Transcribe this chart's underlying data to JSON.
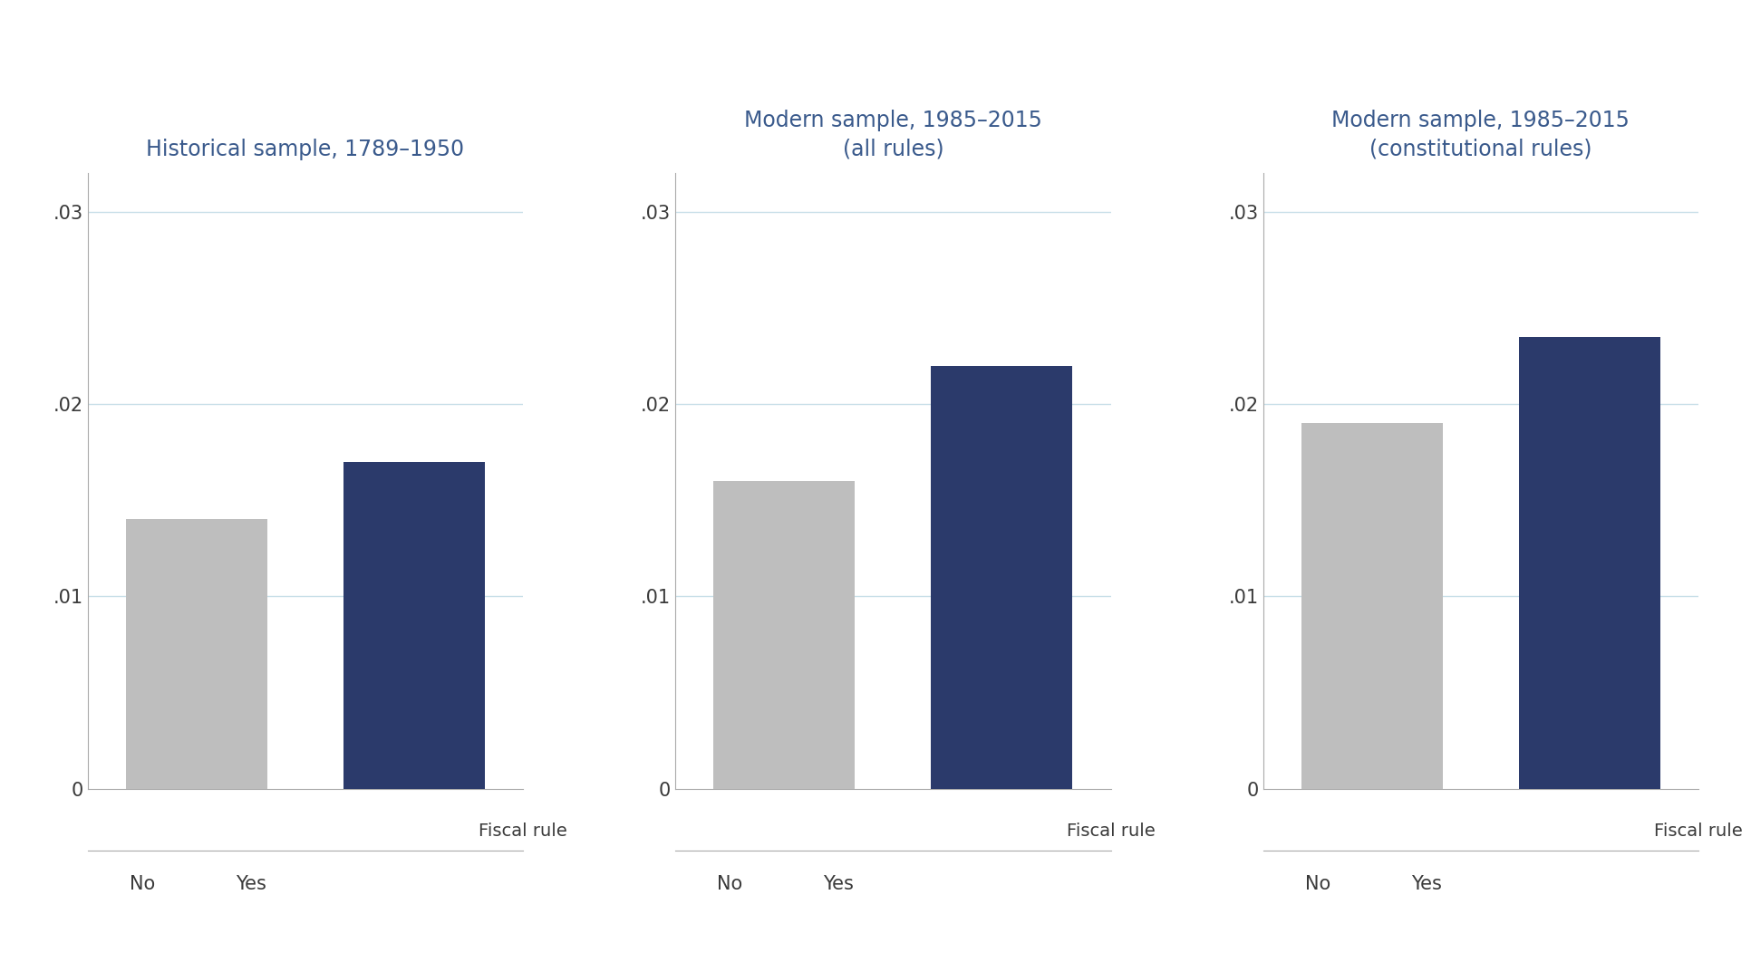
{
  "panels": [
    {
      "title": "Historical sample, 1789–1950",
      "values": [
        0.014,
        0.017
      ],
      "xlabel": "Fiscal rule",
      "xtick_labels": [
        "No",
        "Yes"
      ]
    },
    {
      "title": "Modern sample, 1985–2015\n(all rules)",
      "values": [
        0.016,
        0.022
      ],
      "xlabel": "Fiscal rule",
      "xtick_labels": [
        "No",
        "Yes"
      ]
    },
    {
      "title": "Modern sample, 1985–2015\n(constitutional rules)",
      "values": [
        0.019,
        0.0235
      ],
      "xlabel": "Fiscal rule",
      "xtick_labels": [
        "No",
        "Yes"
      ]
    }
  ],
  "bar_colors": [
    "#bebebe",
    "#2b3a6b"
  ],
  "ylim": [
    0,
    0.032
  ],
  "yticks": [
    0,
    0.01,
    0.02,
    0.03
  ],
  "ytick_labels": [
    "0",
    ".01",
    ".02",
    ".03"
  ],
  "title_color": "#3a5a8c",
  "label_color": "#3a3a3a",
  "background_color": "#ffffff",
  "grid_color": "#c8dfe8",
  "bar_width": 0.65,
  "title_fontsize": 17,
  "tick_fontsize": 15,
  "xlabel_fontsize": 14,
  "spine_color": "#aaaaaa"
}
